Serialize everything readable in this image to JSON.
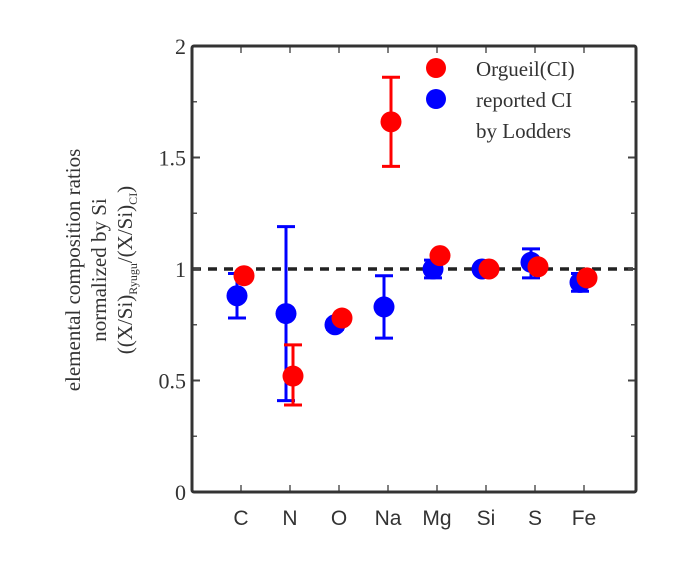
{
  "chart_data": {
    "type": "scatter",
    "title": "",
    "xlabel": "",
    "ylabel": {
      "lines": [
        "elemental composition ratios",
        "normalized by Si",
        "((X/Si)Ryugu/(X/Si)CI)"
      ],
      "line3_parts": {
        "open": "((X/Si)",
        "sub1": "Ryugu",
        "mid": "/(X/Si)",
        "sub2": "CI",
        "close": ")"
      }
    },
    "ylim": [
      0,
      2
    ],
    "yticks": [
      0,
      0.5,
      1,
      1.5,
      2
    ],
    "ytick_labels": [
      "0",
      "0.5",
      "1",
      "1.5",
      "2"
    ],
    "yminor_ticks": [
      0.25,
      0.75,
      1.25,
      1.75
    ],
    "categories": [
      "C",
      "N",
      "O",
      "Na",
      "Mg",
      "Si",
      "S",
      "Fe"
    ],
    "reference_line": {
      "y": 1,
      "style": "dashed",
      "color": "#222222"
    },
    "grid": false,
    "legend_position": "upper right",
    "series": [
      {
        "name": "Orgueil(CI)",
        "color": "#ff0000",
        "values": [
          0.97,
          0.52,
          0.78,
          1.66,
          1.06,
          1.0,
          1.01,
          0.96
        ],
        "err_low": [
          null,
          0.39,
          null,
          1.46,
          null,
          null,
          null,
          null
        ],
        "err_high": [
          null,
          0.66,
          null,
          1.86,
          null,
          null,
          null,
          null
        ]
      },
      {
        "name": "reported CI by Lodders",
        "legend_lines": [
          "reported CI",
          "by Lodders"
        ],
        "color": "#0000ff",
        "values": [
          0.88,
          0.8,
          0.75,
          0.83,
          1.0,
          1.0,
          1.03,
          0.94
        ],
        "err_low": [
          0.78,
          0.41,
          0.73,
          0.69,
          0.96,
          null,
          0.96,
          0.9
        ],
        "err_high": [
          0.98,
          1.19,
          0.77,
          0.97,
          1.04,
          null,
          1.09,
          0.98
        ]
      }
    ]
  }
}
